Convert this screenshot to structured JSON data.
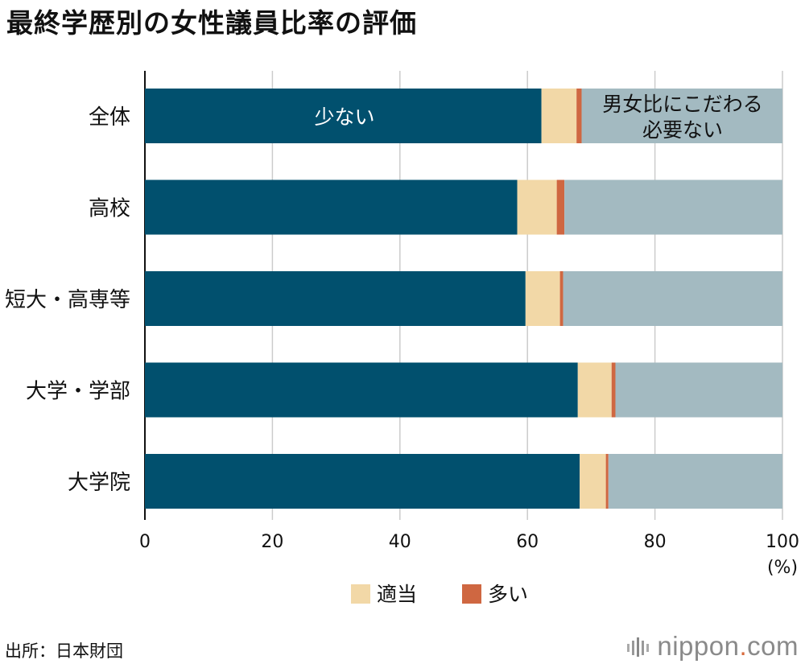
{
  "title": "最終学歴別の女性議員比率の評価",
  "source": "出所：日本財団",
  "brand": {
    "name": "nippon",
    "dot": ".",
    "tld": "com"
  },
  "colors": {
    "few": "#01506e",
    "appropriate": "#f2d8a7",
    "many": "#cf6741",
    "no_need": "#a3bac1",
    "grid": "#cccccc",
    "axis": "#111111"
  },
  "chart_data": {
    "type": "bar",
    "orientation": "horizontal",
    "stacked": true,
    "title": "最終学歴別の女性議員比率の評価",
    "categories": [
      "全体",
      "高校",
      "短大・高専等",
      "大学・学部",
      "大学院"
    ],
    "series": [
      {
        "name": "少ない",
        "values": [
          62.2,
          58.4,
          59.7,
          67.9,
          68.2
        ]
      },
      {
        "name": "適当",
        "values": [
          5.5,
          6.2,
          5.4,
          5.3,
          4.1
        ]
      },
      {
        "name": "多い",
        "values": [
          0.8,
          1.2,
          0.5,
          0.6,
          0.4
        ]
      },
      {
        "name": "男女比にこだわる必要ない",
        "values": [
          31.5,
          34.2,
          34.4,
          26.2,
          27.3
        ]
      }
    ],
    "xlim": [
      0,
      100
    ],
    "xticks": [
      "0",
      "20",
      "40",
      "60",
      "80",
      "100"
    ],
    "xunit": "(%)",
    "legend": [
      "適当",
      "多い"
    ],
    "inline_labels": {
      "few": "少ない",
      "no_need_line1": "男女比にこだわる",
      "no_need_line2": "必要ない"
    }
  }
}
